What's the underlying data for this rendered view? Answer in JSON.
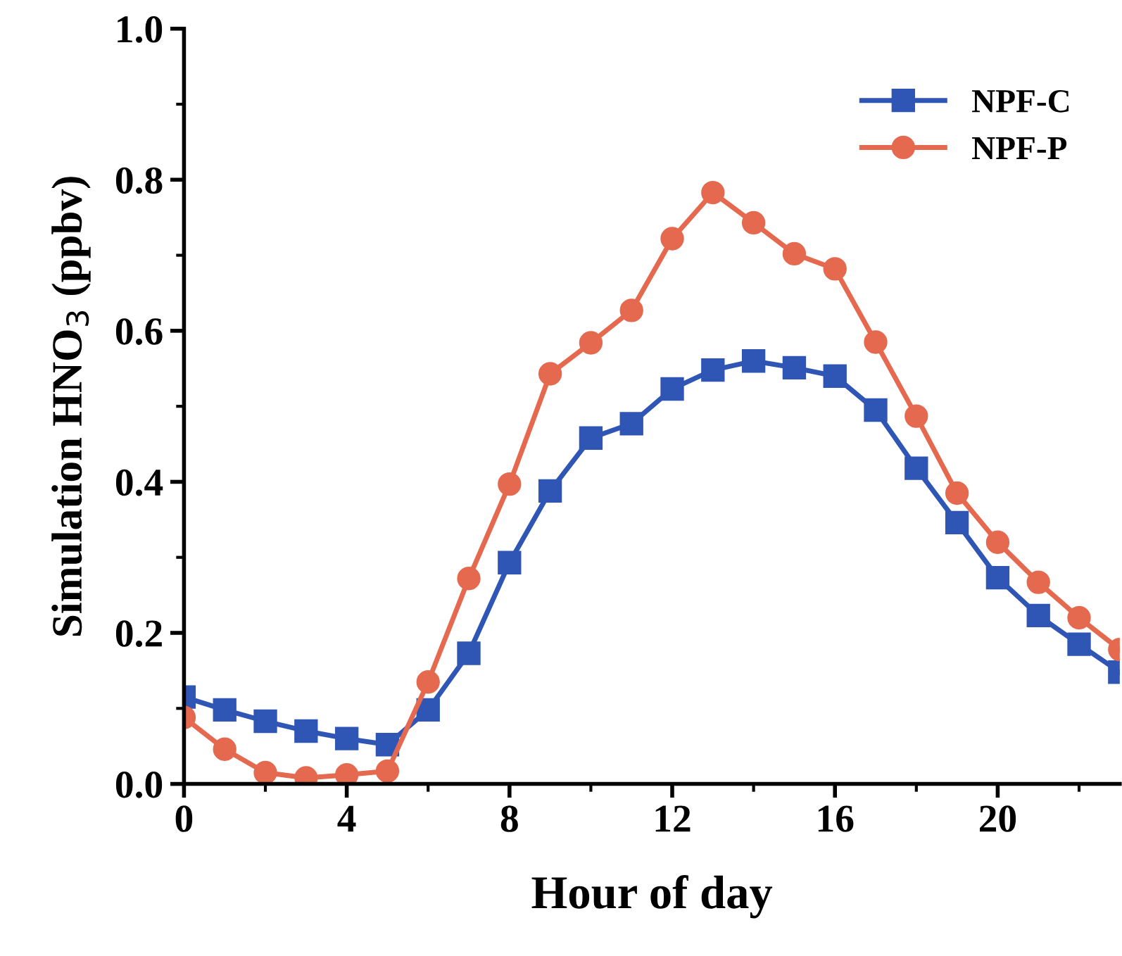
{
  "chart_data": {
    "type": "line",
    "xlabel": "Hour of day",
    "ylabel": "Simulation HNO$_{3}$ (ppbv)",
    "x": [
      0,
      1,
      2,
      3,
      4,
      5,
      6,
      7,
      8,
      9,
      10,
      11,
      12,
      13,
      14,
      15,
      16,
      17,
      18,
      19,
      20,
      21,
      22,
      23
    ],
    "xlim": [
      0,
      23
    ],
    "xticks": [
      0,
      4,
      8,
      12,
      16,
      20
    ],
    "ylim": [
      0,
      1.0
    ],
    "yticks": [
      {
        "value": 0,
        "label": "0.0"
      },
      0.2,
      0.4,
      0.6,
      0.8,
      {
        "value": 1,
        "label": "1.0"
      }
    ],
    "legend": "top right",
    "grid": false,
    "line_style": "solid",
    "series": [
      {
        "name": "NPF-C",
        "color": "#2f55b5",
        "marker": "square",
        "values": [
          0.115,
          0.098,
          0.083,
          0.07,
          0.06,
          0.052,
          0.098,
          0.173,
          0.293,
          0.388,
          0.458,
          0.477,
          0.523,
          0.548,
          0.56,
          0.551,
          0.54,
          0.495,
          0.418,
          0.346,
          0.273,
          0.223,
          0.185,
          0.148
        ]
      },
      {
        "name": "NPF-P",
        "color": "#e5694f",
        "marker": "circle",
        "values": [
          0.088,
          0.046,
          0.015,
          0.008,
          0.012,
          0.017,
          0.135,
          0.272,
          0.397,
          0.543,
          0.584,
          0.627,
          0.722,
          0.783,
          0.743,
          0.702,
          0.682,
          0.585,
          0.487,
          0.385,
          0.32,
          0.267,
          0.22,
          0.178
        ]
      }
    ]
  }
}
